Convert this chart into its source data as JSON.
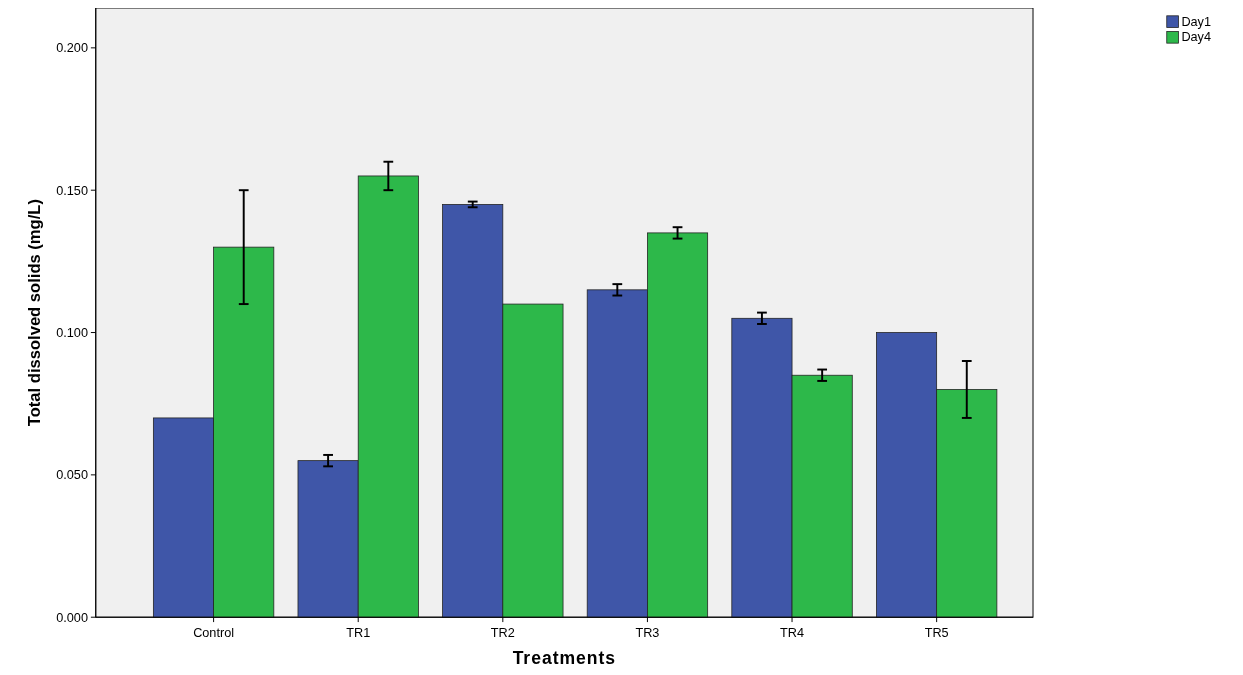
{
  "chart_data": {
    "type": "bar",
    "xlabel": "Treatments",
    "ylabel": "Total dissolved solids (mg/L)",
    "categories": [
      "Control",
      "TR1",
      "TR2",
      "TR3",
      "TR4",
      "TR5"
    ],
    "series": [
      {
        "name": "Day1",
        "color": "#3f56a8",
        "values": [
          0.07,
          0.055,
          0.145,
          0.115,
          0.105,
          0.1
        ],
        "errors": [
          null,
          0.002,
          0.001,
          0.002,
          0.002,
          null
        ]
      },
      {
        "name": "Day4",
        "color": "#2db84a",
        "values": [
          0.13,
          0.155,
          0.11,
          0.135,
          0.085,
          0.08
        ],
        "errors": [
          0.02,
          0.005,
          null,
          0.002,
          0.002,
          0.01
        ]
      }
    ],
    "ylim": [
      0,
      0.214
    ],
    "yticks": [
      {
        "value": 0,
        "label": "0.000"
      },
      {
        "value": 0.05,
        "label": "0.050"
      },
      {
        "value": 0.1,
        "label": "0.100"
      },
      {
        "value": 0.15,
        "label": "0.150"
      },
      {
        "value": 0.2,
        "label": "0.200"
      }
    ],
    "grid": false,
    "legend": "top right"
  }
}
